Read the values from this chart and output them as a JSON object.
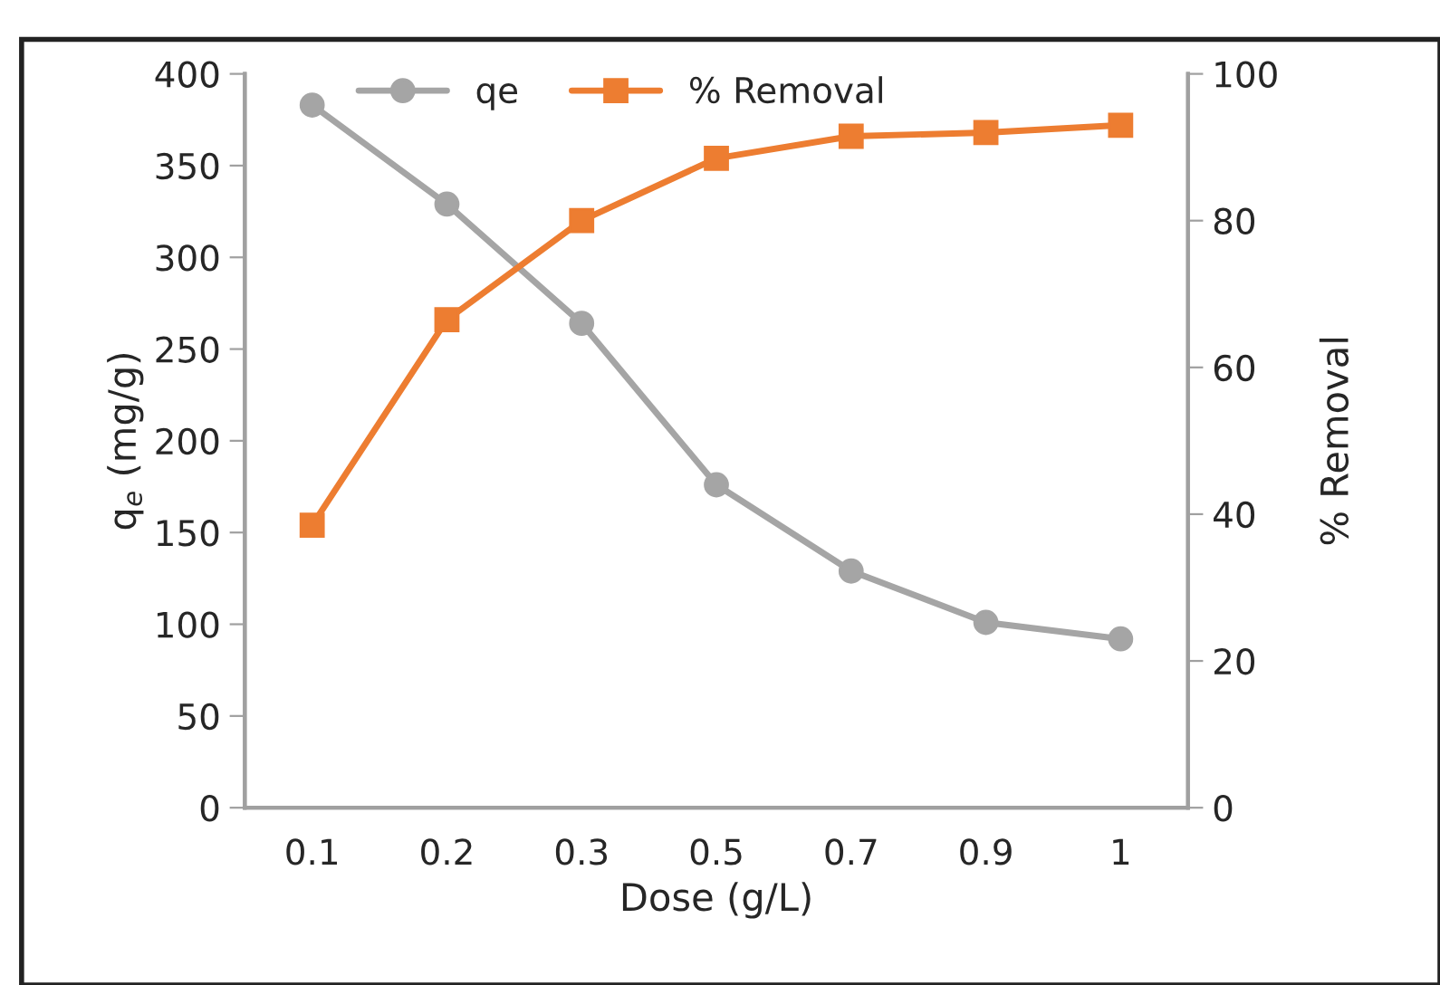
{
  "chart_data": {
    "type": "line",
    "xlabel": "Dose (g/L)",
    "ylabel": "q$_{e}$ (mg/g)",
    "y2label": "% Removal",
    "categories": [
      "0.1",
      "0.2",
      "0.3",
      "0.5",
      "0.7",
      "0.9",
      "1"
    ],
    "series": [
      {
        "name": "qe",
        "color": "#a5a5a5",
        "marker": "circle",
        "values": [
          383,
          329,
          264,
          176,
          129,
          101,
          92
        ]
      },
      {
        "name": "% Removal",
        "color": "#ed7d31",
        "marker": "square",
        "axis": "y2",
        "values": [
          38.5,
          66.5,
          80,
          88.5,
          91.5,
          92,
          93
        ]
      }
    ],
    "ylim": [
      0,
      400
    ],
    "yticks": [
      0,
      50,
      100,
      150,
      200,
      250,
      300,
      350,
      400
    ],
    "y2lim": [
      0,
      100
    ],
    "y2ticks": [
      0,
      20,
      40,
      60,
      80,
      100
    ],
    "legend": "top",
    "grid": false
  }
}
